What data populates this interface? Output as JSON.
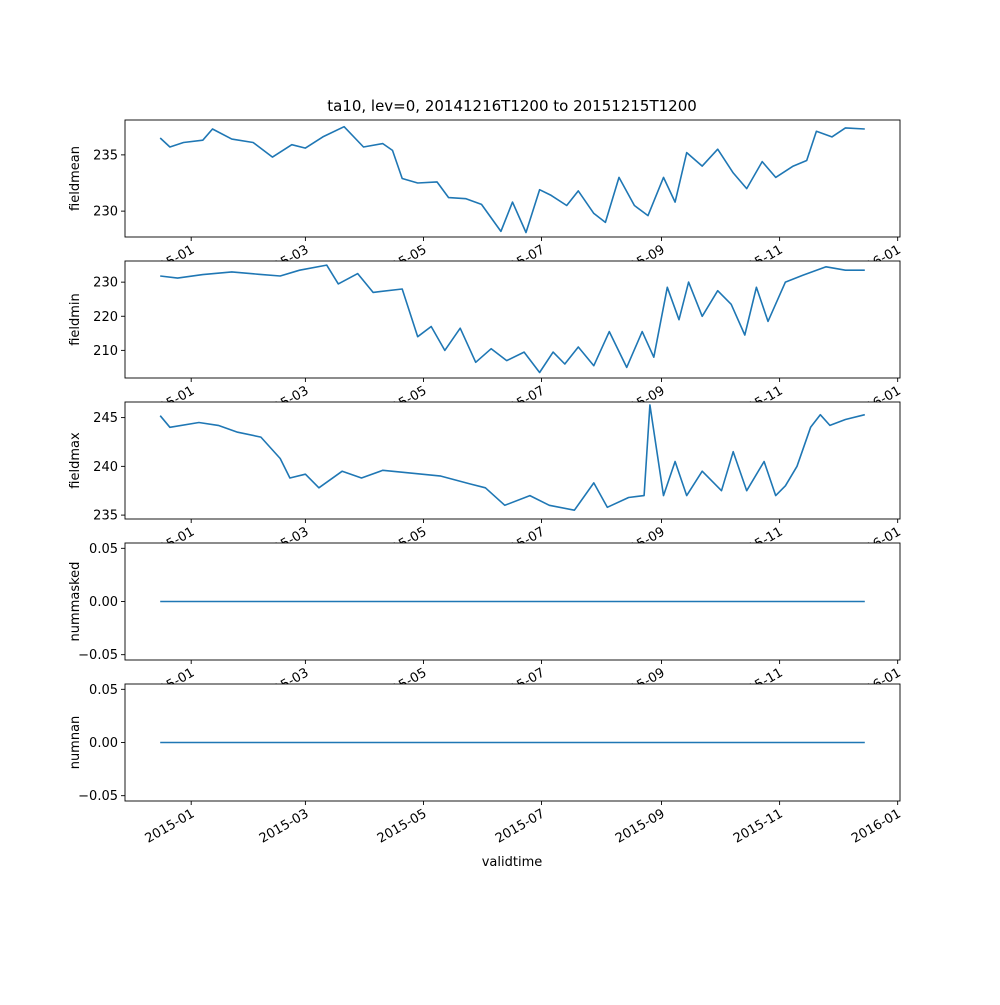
{
  "chart_data": {
    "type": "line",
    "title": "ta10, lev=0, 20141216T1200 to 20151215T1200",
    "xlabel": "validtime",
    "line_color": "#1f77b4",
    "x_range": [
      "2014-12-16",
      "2015-12-15"
    ],
    "x_ticks": [
      {
        "date": "2015-01-01",
        "label": "2015-01"
      },
      {
        "date": "2015-03-01",
        "label": "2015-03"
      },
      {
        "date": "2015-05-01",
        "label": "2015-05"
      },
      {
        "date": "2015-07-01",
        "label": "2015-07"
      },
      {
        "date": "2015-09-01",
        "label": "2015-09"
      },
      {
        "date": "2015-11-01",
        "label": "2015-11"
      },
      {
        "date": "2016-01-01",
        "label": "2016-01"
      }
    ],
    "panels": [
      {
        "ylabel": "fieldmean",
        "ylim": [
          227.7,
          238.1
        ],
        "yticks": [
          {
            "value": 230,
            "label": "230"
          },
          {
            "value": 235,
            "label": "235"
          }
        ],
        "points": [
          [
            "2014-12-16",
            236.5
          ],
          [
            "2014-12-21",
            235.7
          ],
          [
            "2014-12-28",
            236.1
          ],
          [
            "2015-01-07",
            236.3
          ],
          [
            "2015-01-12",
            237.3
          ],
          [
            "2015-01-22",
            236.4
          ],
          [
            "2015-02-02",
            236.1
          ],
          [
            "2015-02-12",
            234.8
          ],
          [
            "2015-02-22",
            235.9
          ],
          [
            "2015-03-01",
            235.6
          ],
          [
            "2015-03-10",
            236.6
          ],
          [
            "2015-03-21",
            237.5
          ],
          [
            "2015-03-31",
            235.7
          ],
          [
            "2015-04-10",
            236.0
          ],
          [
            "2015-04-15",
            235.4
          ],
          [
            "2015-04-20",
            232.9
          ],
          [
            "2015-04-28",
            232.5
          ],
          [
            "2015-05-08",
            232.6
          ],
          [
            "2015-05-14",
            231.2
          ],
          [
            "2015-05-23",
            231.1
          ],
          [
            "2015-05-31",
            230.6
          ],
          [
            "2015-06-10",
            228.2
          ],
          [
            "2015-06-16",
            230.8
          ],
          [
            "2015-06-23",
            228.1
          ],
          [
            "2015-06-30",
            231.9
          ],
          [
            "2015-07-06",
            231.4
          ],
          [
            "2015-07-14",
            230.5
          ],
          [
            "2015-07-20",
            231.8
          ],
          [
            "2015-07-28",
            229.8
          ],
          [
            "2015-08-03",
            229.0
          ],
          [
            "2015-08-10",
            233.0
          ],
          [
            "2015-08-18",
            230.5
          ],
          [
            "2015-08-25",
            229.6
          ],
          [
            "2015-09-02",
            233.0
          ],
          [
            "2015-09-08",
            230.8
          ],
          [
            "2015-09-14",
            235.2
          ],
          [
            "2015-09-22",
            234.0
          ],
          [
            "2015-09-30",
            235.5
          ],
          [
            "2015-10-08",
            233.4
          ],
          [
            "2015-10-15",
            232.0
          ],
          [
            "2015-10-23",
            234.4
          ],
          [
            "2015-10-30",
            233.0
          ],
          [
            "2015-11-08",
            234.0
          ],
          [
            "2015-11-15",
            234.5
          ],
          [
            "2015-11-20",
            237.1
          ],
          [
            "2015-11-28",
            236.6
          ],
          [
            "2015-12-05",
            237.4
          ],
          [
            "2015-12-15",
            237.3
          ]
        ]
      },
      {
        "ylabel": "fieldmin",
        "ylim": [
          201.9,
          236.2
        ],
        "yticks": [
          {
            "value": 210,
            "label": "210"
          },
          {
            "value": 220,
            "label": "220"
          },
          {
            "value": 230,
            "label": "230"
          }
        ],
        "points": [
          [
            "2014-12-16",
            231.8
          ],
          [
            "2014-12-25",
            231.2
          ],
          [
            "2015-01-07",
            232.2
          ],
          [
            "2015-01-22",
            233.0
          ],
          [
            "2015-02-05",
            232.3
          ],
          [
            "2015-02-16",
            231.8
          ],
          [
            "2015-02-26",
            233.5
          ],
          [
            "2015-03-12",
            235.0
          ],
          [
            "2015-03-18",
            229.5
          ],
          [
            "2015-03-28",
            232.5
          ],
          [
            "2015-04-05",
            227.0
          ],
          [
            "2015-04-20",
            228.0
          ],
          [
            "2015-04-28",
            214.0
          ],
          [
            "2015-05-05",
            217.0
          ],
          [
            "2015-05-12",
            210.0
          ],
          [
            "2015-05-20",
            216.5
          ],
          [
            "2015-05-28",
            206.5
          ],
          [
            "2015-06-05",
            210.5
          ],
          [
            "2015-06-13",
            207.0
          ],
          [
            "2015-06-22",
            209.5
          ],
          [
            "2015-06-30",
            203.5
          ],
          [
            "2015-07-07",
            209.5
          ],
          [
            "2015-07-13",
            206.0
          ],
          [
            "2015-07-20",
            211.0
          ],
          [
            "2015-07-28",
            205.5
          ],
          [
            "2015-08-05",
            215.5
          ],
          [
            "2015-08-14",
            205.0
          ],
          [
            "2015-08-22",
            215.5
          ],
          [
            "2015-08-28",
            208.0
          ],
          [
            "2015-09-04",
            228.5
          ],
          [
            "2015-09-10",
            219.0
          ],
          [
            "2015-09-15",
            230.0
          ],
          [
            "2015-09-22",
            220.0
          ],
          [
            "2015-09-30",
            227.5
          ],
          [
            "2015-10-07",
            223.5
          ],
          [
            "2015-10-14",
            214.5
          ],
          [
            "2015-10-20",
            228.5
          ],
          [
            "2015-10-26",
            218.5
          ],
          [
            "2015-11-04",
            230.0
          ],
          [
            "2015-11-13",
            232.0
          ],
          [
            "2015-11-25",
            234.5
          ],
          [
            "2015-12-05",
            233.5
          ],
          [
            "2015-12-15",
            233.5
          ]
        ]
      },
      {
        "ylabel": "fieldmax",
        "ylim": [
          234.6,
          246.6
        ],
        "yticks": [
          {
            "value": 235,
            "label": "235"
          },
          {
            "value": 240,
            "label": "240"
          },
          {
            "value": 245,
            "label": "245"
          }
        ],
        "points": [
          [
            "2014-12-16",
            245.2
          ],
          [
            "2014-12-21",
            244.0
          ],
          [
            "2015-01-05",
            244.5
          ],
          [
            "2015-01-15",
            244.2
          ],
          [
            "2015-01-25",
            243.5
          ],
          [
            "2015-02-06",
            243.0
          ],
          [
            "2015-02-16",
            240.8
          ],
          [
            "2015-02-21",
            238.8
          ],
          [
            "2015-03-01",
            239.2
          ],
          [
            "2015-03-08",
            237.8
          ],
          [
            "2015-03-20",
            239.5
          ],
          [
            "2015-03-30",
            238.8
          ],
          [
            "2015-04-10",
            239.6
          ],
          [
            "2015-04-25",
            239.3
          ],
          [
            "2015-05-10",
            239.0
          ],
          [
            "2015-05-25",
            238.2
          ],
          [
            "2015-06-02",
            237.8
          ],
          [
            "2015-06-12",
            236.0
          ],
          [
            "2015-06-25",
            237.0
          ],
          [
            "2015-07-05",
            236.0
          ],
          [
            "2015-07-18",
            235.5
          ],
          [
            "2015-07-28",
            238.3
          ],
          [
            "2015-08-04",
            235.8
          ],
          [
            "2015-08-15",
            236.8
          ],
          [
            "2015-08-23",
            237.0
          ],
          [
            "2015-08-26",
            246.3
          ],
          [
            "2015-09-02",
            237.0
          ],
          [
            "2015-09-08",
            240.5
          ],
          [
            "2015-09-14",
            237.0
          ],
          [
            "2015-09-22",
            239.5
          ],
          [
            "2015-10-02",
            237.5
          ],
          [
            "2015-10-08",
            241.5
          ],
          [
            "2015-10-15",
            237.5
          ],
          [
            "2015-10-24",
            240.5
          ],
          [
            "2015-10-30",
            237.0
          ],
          [
            "2015-11-04",
            238.0
          ],
          [
            "2015-11-10",
            240.0
          ],
          [
            "2015-11-17",
            244.0
          ],
          [
            "2015-11-22",
            245.3
          ],
          [
            "2015-11-27",
            244.2
          ],
          [
            "2015-12-05",
            244.8
          ],
          [
            "2015-12-15",
            245.3
          ]
        ]
      },
      {
        "ylabel": "nummasked",
        "ylim": [
          -0.055,
          0.055
        ],
        "yticks": [
          {
            "value": -0.05,
            "label": "−0.05"
          },
          {
            "value": 0,
            "label": "0.00"
          },
          {
            "value": 0.05,
            "label": "0.05"
          }
        ],
        "points": [
          [
            "2014-12-16",
            0
          ],
          [
            "2015-12-15",
            0
          ]
        ]
      },
      {
        "ylabel": "numnan",
        "ylim": [
          -0.055,
          0.055
        ],
        "yticks": [
          {
            "value": -0.05,
            "label": "−0.05"
          },
          {
            "value": 0,
            "label": "0.00"
          },
          {
            "value": 0.05,
            "label": "0.05"
          }
        ],
        "points": [
          [
            "2014-12-16",
            0
          ],
          [
            "2015-12-15",
            0
          ]
        ]
      }
    ]
  }
}
